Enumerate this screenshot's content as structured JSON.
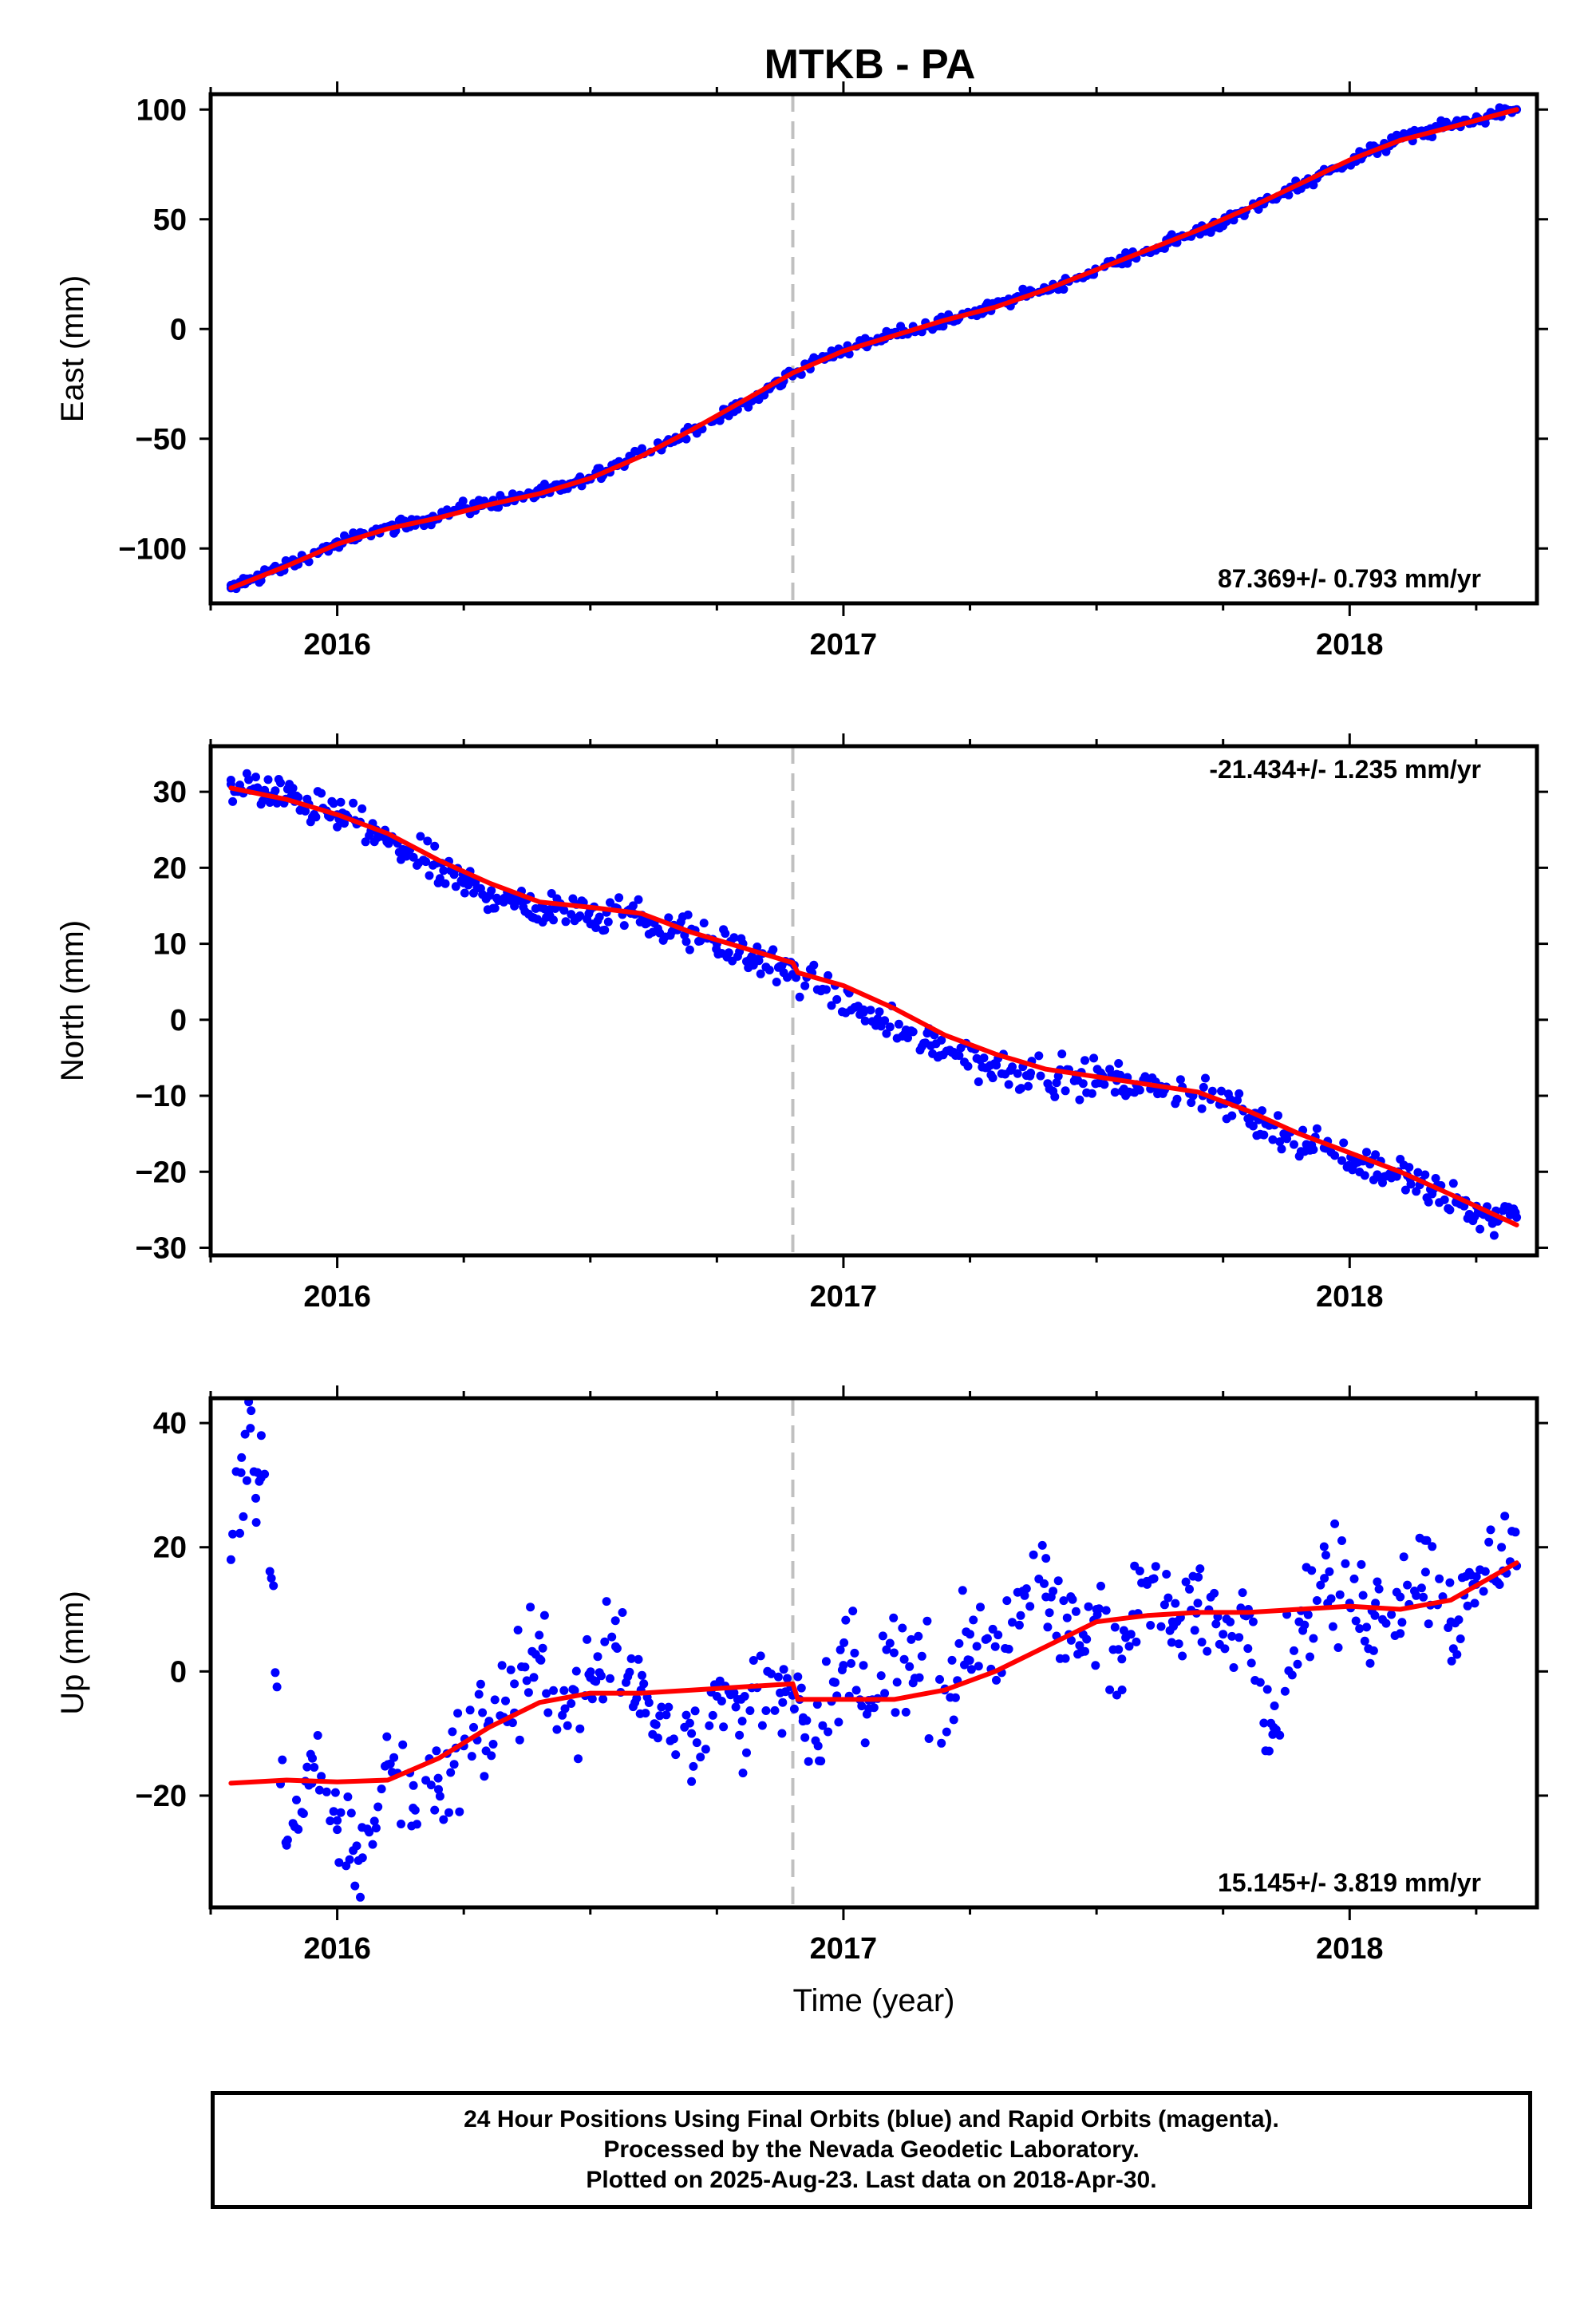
{
  "title": "MTKB - PA",
  "footer": {
    "line1": "24 Hour Positions Using Final Orbits (blue) and Rapid Orbits (magenta).",
    "line2": "Processed by the Nevada Geodetic Laboratory.",
    "line3": "Plotted on 2025-Aug-23. Last data on 2018-Apr-30."
  },
  "colors": {
    "data_points": "#0000ff",
    "model_line": "#ff0000",
    "event_line": "#c0c0c0",
    "axes": "#000000"
  },
  "chart_data": [
    {
      "type": "scatter",
      "ylabel": "East (mm)",
      "xlim": [
        2015.75,
        2018.37
      ],
      "ylim": [
        -125,
        107
      ],
      "xticks": [
        2016,
        2017,
        2018
      ],
      "yticks": [
        -100,
        -50,
        0,
        50,
        100
      ],
      "rate_label": "87.369+/- 0.793 mm/yr",
      "rate_label_position": "bottom-right",
      "event_lines": [
        2016.9
      ],
      "series": [
        {
          "role": "points",
          "x": [
            2015.79,
            2015.85,
            2015.92,
            2016.0,
            2016.08,
            2016.17,
            2016.25,
            2016.33,
            2016.42,
            2016.5,
            2016.58,
            2016.67,
            2016.75,
            2016.83,
            2016.9,
            2016.96,
            2017.04,
            2017.12,
            2017.21,
            2017.29,
            2017.37,
            2017.46,
            2017.54,
            2017.62,
            2017.71,
            2017.79,
            2017.87,
            2017.96,
            2018.04,
            2018.12,
            2018.21,
            2018.29,
            2018.33
          ],
          "y": [
            -118,
            -112,
            -106,
            -98,
            -92,
            -87,
            -82,
            -78,
            -74,
            -68,
            -58,
            -50,
            -41,
            -31,
            -20,
            -13,
            -7,
            -1,
            4,
            10,
            16,
            23,
            30,
            37,
            45,
            53,
            62,
            72,
            81,
            88,
            93,
            98,
            100
          ]
        },
        {
          "role": "model",
          "x": [
            2015.79,
            2015.9,
            2016.0,
            2016.1,
            2016.2,
            2016.3,
            2016.4,
            2016.5,
            2016.6,
            2016.7,
            2016.8,
            2016.9,
            2016.91,
            2017.0,
            2017.1,
            2017.2,
            2017.3,
            2017.4,
            2017.5,
            2017.6,
            2017.7,
            2017.8,
            2017.9,
            2018.0,
            2018.1,
            2018.2,
            2018.33
          ],
          "y": [
            -118,
            -108,
            -98,
            -91,
            -86,
            -80,
            -75,
            -68,
            -58,
            -46,
            -33,
            -20,
            -19,
            -10,
            -3,
            4,
            10,
            18,
            27,
            36,
            45,
            55,
            66,
            77,
            86,
            92,
            100
          ]
        }
      ]
    },
    {
      "type": "scatter",
      "ylabel": "North (mm)",
      "xlim": [
        2015.75,
        2018.37
      ],
      "ylim": [
        -31,
        36
      ],
      "xticks": [
        2016,
        2017,
        2018
      ],
      "yticks": [
        -30,
        -20,
        -10,
        0,
        10,
        20,
        30
      ],
      "rate_label": "-21.434+/- 1.235 mm/yr",
      "rate_label_position": "top-right",
      "event_lines": [
        2016.9
      ],
      "series": [
        {
          "role": "points",
          "x": [
            2015.79,
            2015.85,
            2015.92,
            2016.0,
            2016.08,
            2016.17,
            2016.25,
            2016.33,
            2016.42,
            2016.5,
            2016.58,
            2016.67,
            2016.75,
            2016.83,
            2016.9,
            2016.96,
            2017.04,
            2017.12,
            2017.21,
            2017.29,
            2017.37,
            2017.46,
            2017.54,
            2017.62,
            2017.71,
            2017.79,
            2017.87,
            2017.96,
            2018.04,
            2018.12,
            2018.21,
            2018.29,
            2018.33
          ],
          "y": [
            31,
            30,
            29,
            27,
            24,
            21,
            18,
            16,
            14.5,
            14.5,
            14,
            12,
            10,
            8,
            6,
            4,
            1,
            -2,
            -4,
            -6,
            -7,
            -7.5,
            -8,
            -9,
            -10,
            -12,
            -15,
            -17,
            -19,
            -21,
            -24,
            -26,
            -26
          ]
        },
        {
          "role": "model",
          "x": [
            2015.79,
            2015.9,
            2016.0,
            2016.1,
            2016.2,
            2016.3,
            2016.4,
            2016.5,
            2016.6,
            2016.7,
            2016.8,
            2016.9,
            2016.91,
            2017.0,
            2017.1,
            2017.2,
            2017.3,
            2017.4,
            2017.5,
            2017.6,
            2017.7,
            2017.8,
            2017.9,
            2018.0,
            2018.1,
            2018.2,
            2018.33
          ],
          "y": [
            30.5,
            29,
            27,
            24.5,
            21,
            18,
            15.5,
            14.8,
            14,
            11.5,
            9.5,
            7.5,
            6.2,
            4.5,
            1.5,
            -2,
            -4.5,
            -6.5,
            -7.5,
            -8.5,
            -9.5,
            -12,
            -15,
            -17.5,
            -20,
            -23,
            -27
          ]
        }
      ]
    },
    {
      "type": "scatter",
      "ylabel": "Up (mm)",
      "xlabel": "Time (year)",
      "xlim": [
        2015.75,
        2018.37
      ],
      "ylim": [
        -38,
        44
      ],
      "xticks": [
        2016,
        2017,
        2018
      ],
      "yticks": [
        -20,
        0,
        20,
        40
      ],
      "rate_label": "15.145+/- 3.819 mm/yr",
      "rate_label_position": "bottom-right",
      "event_lines": [
        2016.9
      ],
      "series": [
        {
          "role": "points",
          "x": [
            2015.79,
            2015.81,
            2015.83,
            2015.84,
            2015.85,
            2015.87,
            2015.9,
            2015.95,
            2016.0,
            2016.05,
            2016.1,
            2016.15,
            2016.2,
            2016.25,
            2016.3,
            2016.35,
            2016.4,
            2016.45,
            2016.5,
            2016.55,
            2016.6,
            2016.65,
            2016.7,
            2016.75,
            2016.8,
            2016.85,
            2016.88,
            2016.92,
            2016.95,
            2017.0,
            2017.05,
            2017.1,
            2017.15,
            2017.2,
            2017.25,
            2017.3,
            2017.35,
            2017.4,
            2017.45,
            2017.5,
            2017.55,
            2017.6,
            2017.65,
            2017.7,
            2017.75,
            2017.8,
            2017.85,
            2017.9,
            2017.95,
            2018.0,
            2018.05,
            2018.1,
            2018.15,
            2018.2,
            2018.25,
            2018.3,
            2018.33
          ],
          "y": [
            18,
            32,
            42,
            24,
            38,
            15,
            -28,
            -18,
            -24,
            -30,
            -15,
            -22,
            -19,
            -12,
            -8,
            -2,
            2,
            -6,
            -1,
            4,
            -3,
            -7,
            -10,
            -4,
            -8,
            0,
            -5,
            -8,
            -12,
            1,
            -6,
            3,
            -1,
            -3,
            6,
            4,
            9,
            12,
            5,
            10,
            2,
            14,
            8,
            11,
            6,
            10,
            -9,
            8,
            15,
            11,
            9,
            12,
            16,
            8,
            14,
            20,
            17
          ]
        },
        {
          "role": "model",
          "x": [
            2015.79,
            2015.9,
            2016.0,
            2016.1,
            2016.2,
            2016.3,
            2016.4,
            2016.5,
            2016.6,
            2016.7,
            2016.8,
            2016.9,
            2016.91,
            2017.0,
            2017.1,
            2017.2,
            2017.3,
            2017.4,
            2017.5,
            2017.6,
            2017.7,
            2017.8,
            2017.9,
            2018.0,
            2018.1,
            2018.2,
            2018.33
          ],
          "y": [
            -18,
            -17.5,
            -17.8,
            -17.5,
            -14,
            -9,
            -5,
            -3.5,
            -3.5,
            -3,
            -2.5,
            -2,
            -4.5,
            -4.5,
            -4.5,
            -3,
            0,
            4,
            8,
            9,
            9.5,
            9.5,
            10,
            10.5,
            10,
            11.5,
            17.5
          ]
        }
      ]
    }
  ]
}
